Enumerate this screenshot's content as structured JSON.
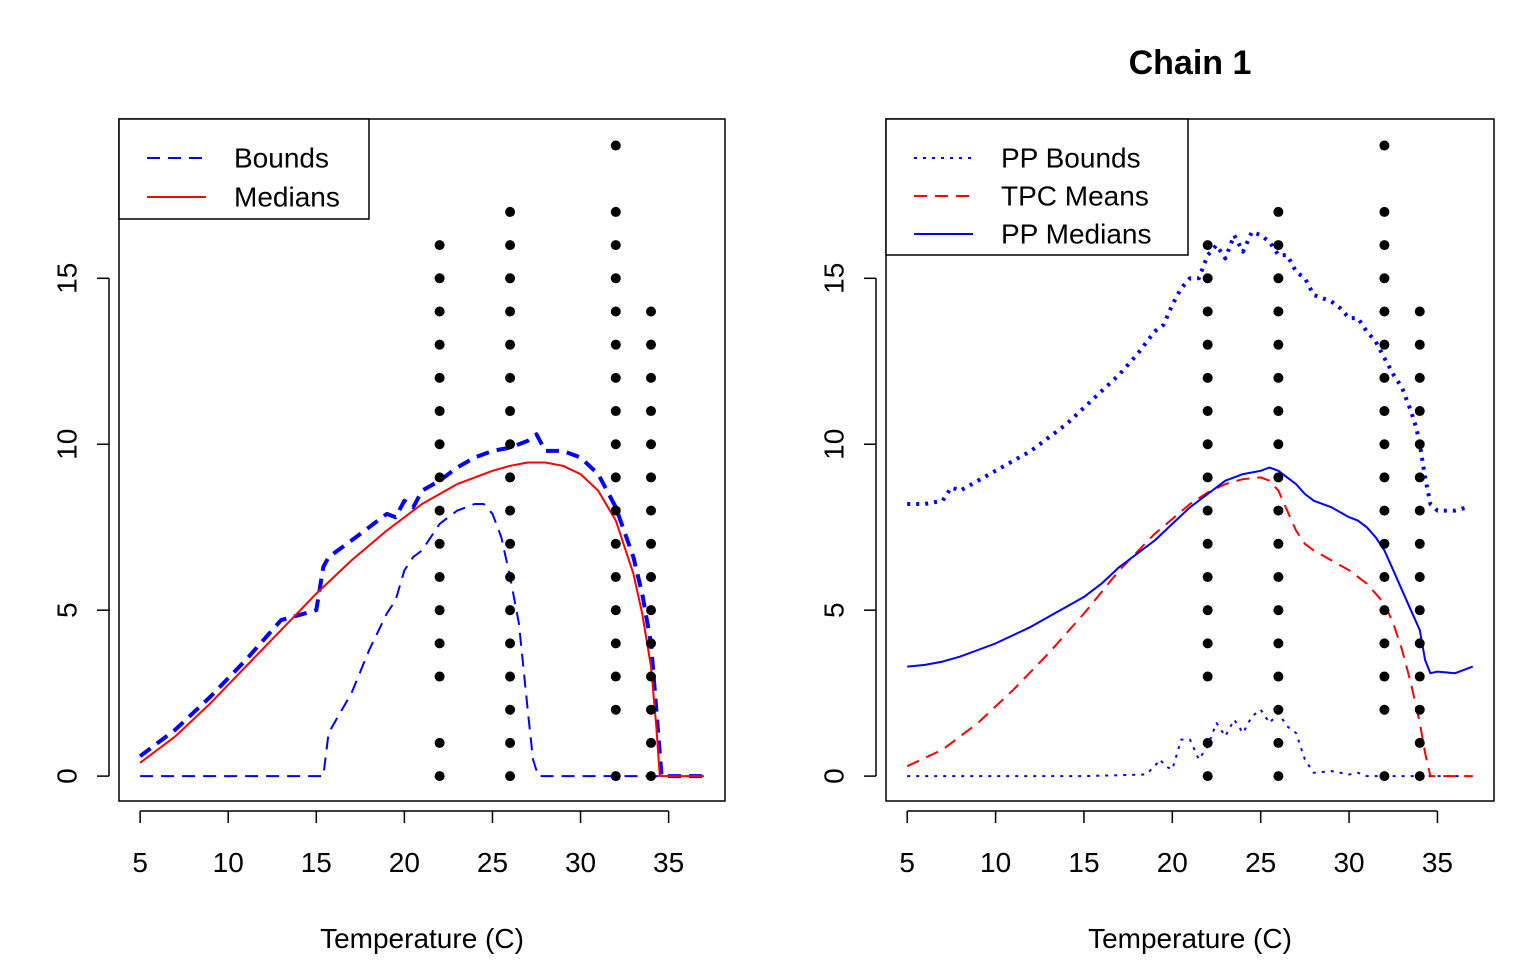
{
  "chart_data": [
    {
      "type": "line",
      "title": "",
      "xlabel": "Temperature (C)",
      "ylabel": "",
      "xlim": [
        3.8,
        38.2
      ],
      "ylim": [
        -0.75,
        19.8
      ],
      "xticks": [
        5,
        10,
        15,
        20,
        25,
        30,
        35
      ],
      "yticks": [
        0,
        5,
        10,
        15
      ],
      "legend": {
        "position": "top-left",
        "entries": [
          {
            "label": "Bounds",
            "color": "#0000ff",
            "style": "dashed"
          },
          {
            "label": "Medians",
            "color": "#ff0000",
            "style": "solid"
          }
        ]
      },
      "series": [
        {
          "name": "Bounds",
          "role": "upper",
          "color": "#0000ff",
          "style": "dashed",
          "width": 4,
          "x": [
            5,
            7,
            9,
            11,
            13,
            15,
            15.4,
            15.7,
            17,
            18,
            19,
            19.5,
            20,
            20.5,
            21,
            22,
            23,
            24,
            25,
            26,
            27,
            27.5,
            28,
            29,
            30,
            31,
            32,
            33,
            33.5,
            34,
            34.3,
            34.6,
            37
          ],
          "y": [
            0.6,
            1.4,
            2.4,
            3.5,
            4.7,
            5,
            6.3,
            6.6,
            7.1,
            7.5,
            7.9,
            7.8,
            8.3,
            8.1,
            8.6,
            8.9,
            9.3,
            9.6,
            9.8,
            9.9,
            10.1,
            10.3,
            9.8,
            9.8,
            9.6,
            9.1,
            8.1,
            6.6,
            5.5,
            4,
            2,
            0,
            0
          ]
        },
        {
          "name": "Bounds",
          "role": "lower",
          "color": "#0000ff",
          "style": "dashed",
          "width": 2,
          "x": [
            5,
            10,
            15.4,
            15.7,
            17,
            18,
            19,
            19.5,
            20,
            20.5,
            21,
            22,
            23,
            24,
            24.5,
            25,
            25.5,
            26,
            26.5,
            27,
            27.3,
            27.6,
            30,
            34,
            37
          ],
          "y": [
            0,
            0,
            0,
            1.3,
            2.5,
            3.8,
            4.9,
            5.3,
            6.2,
            6.6,
            6.8,
            7.6,
            8,
            8.2,
            8.2,
            7.9,
            7.2,
            6,
            4.6,
            2,
            0.5,
            0,
            0,
            0,
            0
          ]
        },
        {
          "name": "Medians",
          "color": "#ff0000",
          "style": "solid",
          "width": 2,
          "x": [
            5,
            7,
            9,
            11,
            13,
            15,
            17,
            19,
            21,
            23,
            25,
            26,
            27,
            28,
            29,
            30,
            31,
            32,
            33,
            33.5,
            34,
            34.3,
            34.5,
            37
          ],
          "y": [
            0.4,
            1.2,
            2.2,
            3.3,
            4.4,
            5.5,
            6.5,
            7.4,
            8.2,
            8.8,
            9.2,
            9.35,
            9.45,
            9.45,
            9.35,
            9.1,
            8.6,
            7.7,
            6.1,
            4.9,
            3.3,
            1.5,
            0,
            0
          ]
        }
      ],
      "points": {
        "x": [
          22,
          22,
          22,
          22,
          22,
          22,
          22,
          22,
          22,
          22,
          22,
          22,
          22,
          22,
          22,
          22,
          26,
          26,
          26,
          26,
          26,
          26,
          26,
          26,
          26,
          26,
          26,
          26,
          26,
          26,
          26,
          26,
          26,
          26,
          32,
          32,
          32,
          32,
          32,
          32,
          32,
          32,
          32,
          32,
          32,
          32,
          32,
          32,
          32,
          32,
          32,
          32,
          34,
          34,
          34,
          34,
          34,
          34,
          34,
          34,
          34,
          34,
          34,
          34,
          34,
          34,
          34
        ],
        "y": [
          0,
          1,
          3,
          4,
          5,
          6,
          7,
          8,
          9,
          10,
          11,
          12,
          13,
          14,
          15,
          16,
          0,
          1,
          2,
          3,
          4,
          5,
          6,
          7,
          8,
          9,
          10,
          11,
          12,
          13,
          14,
          15,
          16,
          17,
          0,
          2,
          3,
          4,
          5,
          6,
          7,
          8,
          9,
          10,
          11,
          12,
          13,
          14,
          15,
          16,
          17,
          19,
          0,
          1,
          2,
          3,
          4,
          5,
          6,
          7,
          8,
          9,
          10,
          11,
          12,
          13,
          14
        ]
      }
    },
    {
      "type": "line",
      "title": "Chain 1",
      "xlabel": "Temperature (C)",
      "ylabel": "",
      "xlim": [
        3.8,
        38.2
      ],
      "ylim": [
        -0.75,
        19.8
      ],
      "xticks": [
        5,
        10,
        15,
        20,
        25,
        30,
        35
      ],
      "yticks": [
        0,
        5,
        10,
        15
      ],
      "legend": {
        "position": "top-left",
        "entries": [
          {
            "label": "PP Bounds",
            "color": "#0000ff",
            "style": "dotted"
          },
          {
            "label": "TPC Means",
            "color": "#ff0000",
            "style": "dashed"
          },
          {
            "label": "PP Medians",
            "color": "#0000ff",
            "style": "solid"
          }
        ]
      },
      "series": [
        {
          "name": "PP Bounds",
          "role": "upper",
          "color": "#0000ff",
          "style": "dotted",
          "width": 4,
          "x": [
            5,
            6,
            7,
            7.5,
            8,
            9,
            10,
            11,
            12,
            13,
            14,
            15,
            16,
            17,
            18,
            19,
            19.5,
            20,
            20.5,
            21,
            21.5,
            22,
            22.5,
            23,
            23.5,
            24,
            24.5,
            25,
            25.5,
            26,
            26.5,
            27,
            27.5,
            28,
            28.5,
            29,
            29.5,
            30,
            30.5,
            31,
            31.5,
            32,
            32.5,
            33,
            33.5,
            33.8,
            34,
            34.3,
            34.6,
            35,
            36,
            36.7
          ],
          "y": [
            8.2,
            8.2,
            8.3,
            8.7,
            8.6,
            8.9,
            9.2,
            9.5,
            9.8,
            10.2,
            10.6,
            11.1,
            11.6,
            12.1,
            12.7,
            13.4,
            13.6,
            14.2,
            14.7,
            15,
            15,
            15.7,
            16,
            15.6,
            16.3,
            15.8,
            16.4,
            16.3,
            16.1,
            15.7,
            15.7,
            15.2,
            15,
            14.5,
            14.4,
            14.3,
            14.1,
            13.8,
            13.8,
            13.4,
            13.1,
            12.6,
            12.1,
            11.7,
            11,
            10.5,
            10,
            9,
            8.2,
            8,
            8,
            8.1
          ]
        },
        {
          "name": "PP Bounds",
          "role": "lower",
          "color": "#0000ff",
          "style": "dotted",
          "width": 2,
          "x": [
            5,
            10,
            15,
            18.5,
            19,
            19.3,
            19.6,
            20,
            20.5,
            21,
            21.5,
            22,
            22.5,
            23,
            23.5,
            24,
            24.5,
            25,
            25.5,
            26,
            26.5,
            27,
            27.5,
            28,
            29,
            30,
            30.5,
            31,
            32,
            34,
            37
          ],
          "y": [
            0,
            0,
            0,
            0.05,
            0.3,
            0.5,
            0.3,
            0.2,
            1.1,
            1.1,
            0.5,
            0.9,
            1.6,
            1.2,
            1.7,
            1.3,
            1.8,
            2.0,
            1.6,
            1.9,
            1.5,
            1.3,
            0.5,
            0.1,
            0.15,
            0.05,
            0.1,
            0,
            0,
            0,
            0
          ]
        },
        {
          "name": "TPC Means",
          "color": "#ff0000",
          "style": "dashed",
          "width": 2,
          "x": [
            5,
            7,
            9,
            11,
            13,
            15,
            17,
            19,
            21,
            22,
            23,
            24,
            25,
            25.5,
            26,
            26.5,
            27,
            27.5,
            28,
            29,
            30,
            31,
            32,
            32.5,
            33,
            33.5,
            34,
            34.3,
            34.6,
            35,
            37
          ],
          "y": [
            0.3,
            0.8,
            1.6,
            2.6,
            3.7,
            4.9,
            6.2,
            7.3,
            8.2,
            8.55,
            8.8,
            8.95,
            9.0,
            8.9,
            8.6,
            8.0,
            7.4,
            7.0,
            6.8,
            6.5,
            6.2,
            5.8,
            5.2,
            4.6,
            3.8,
            2.8,
            1.6,
            0.7,
            0,
            0,
            0
          ]
        },
        {
          "name": "PP Medians",
          "color": "#0000ff",
          "style": "solid",
          "width": 2,
          "x": [
            5,
            6,
            7,
            8,
            9,
            10,
            11,
            12,
            13,
            14,
            15,
            16,
            17,
            18,
            19,
            20,
            21,
            22,
            23,
            24,
            25,
            25.5,
            26,
            26.5,
            27,
            27.5,
            28,
            29,
            30,
            30.5,
            31,
            31.5,
            32,
            32.5,
            33,
            33.5,
            34,
            34.3,
            34.6,
            35,
            36,
            37
          ],
          "y": [
            3.3,
            3.35,
            3.45,
            3.6,
            3.8,
            4.0,
            4.25,
            4.5,
            4.8,
            5.1,
            5.4,
            5.8,
            6.3,
            6.7,
            7.1,
            7.6,
            8.1,
            8.5,
            8.9,
            9.1,
            9.2,
            9.3,
            9.2,
            9.0,
            8.8,
            8.5,
            8.3,
            8.1,
            7.8,
            7.7,
            7.5,
            7.2,
            6.8,
            6.2,
            5.6,
            5.0,
            4.4,
            3.5,
            3.1,
            3.15,
            3.1,
            3.3
          ]
        }
      ],
      "points": {
        "x": [
          22,
          22,
          22,
          22,
          22,
          22,
          22,
          22,
          22,
          22,
          22,
          22,
          22,
          22,
          22,
          22,
          26,
          26,
          26,
          26,
          26,
          26,
          26,
          26,
          26,
          26,
          26,
          26,
          26,
          26,
          26,
          26,
          26,
          26,
          32,
          32,
          32,
          32,
          32,
          32,
          32,
          32,
          32,
          32,
          32,
          32,
          32,
          32,
          32,
          32,
          32,
          32,
          34,
          34,
          34,
          34,
          34,
          34,
          34,
          34,
          34,
          34,
          34,
          34,
          34,
          34,
          34
        ],
        "y": [
          0,
          1,
          3,
          4,
          5,
          6,
          7,
          8,
          9,
          10,
          11,
          12,
          13,
          14,
          15,
          16,
          0,
          1,
          2,
          3,
          4,
          5,
          6,
          7,
          8,
          9,
          10,
          11,
          12,
          13,
          14,
          15,
          16,
          17,
          0,
          2,
          3,
          4,
          5,
          6,
          7,
          8,
          9,
          10,
          11,
          12,
          13,
          14,
          15,
          16,
          17,
          19,
          0,
          1,
          2,
          3,
          4,
          5,
          6,
          7,
          8,
          9,
          10,
          11,
          12,
          13,
          14
        ]
      }
    }
  ]
}
